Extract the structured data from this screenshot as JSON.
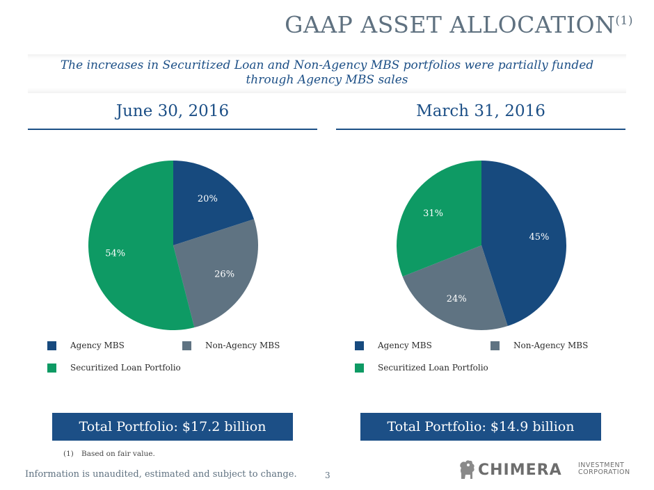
{
  "slide": {
    "title": "GAAP ASSET ALLOCATION",
    "title_superscript": "(1)",
    "subtitle_line1": "The increases in Securitized Loan and Non-Agency MBS portfolios were partially funded",
    "subtitle_line2": "through Agency MBS sales",
    "footnote_number": "(1)",
    "footnote_text": "Based on fair value.",
    "disclaimer": "Information is unaudited, estimated and subject to change.",
    "page_number": "3",
    "logo": {
      "brand": "CHIMERA",
      "line1": "INVESTMENT",
      "line2": "CORPORATION",
      "icon": "chimera-lion-icon"
    }
  },
  "colors": {
    "accent": "#1c4f86",
    "agency_mbs": "#174a7e",
    "non_agency_mbs": "#5f7382",
    "securitized_loan": "#0e9a64"
  },
  "legend": {
    "agency": "Agency MBS",
    "non_agency": "Non-Agency MBS",
    "securitized": "Securitized Loan Portfolio"
  },
  "chart_data": [
    {
      "type": "pie",
      "title": "June 30, 2016",
      "categories": [
        "Agency MBS",
        "Non-Agency MBS",
        "Securitized Loan Portfolio"
      ],
      "values": [
        20,
        26,
        54
      ],
      "labels": [
        "20%",
        "26%",
        "54%"
      ],
      "legend_position": "bottom",
      "total": "Total Portfolio: $17.2 billion"
    },
    {
      "type": "pie",
      "title": "March 31, 2016",
      "categories": [
        "Agency MBS",
        "Non-Agency MBS",
        "Securitized Loan Portfolio"
      ],
      "values": [
        45,
        24,
        31
      ],
      "labels": [
        "45%",
        "24%",
        "31%"
      ],
      "legend_position": "bottom",
      "total": "Total Portfolio: $14.9 billion"
    }
  ]
}
